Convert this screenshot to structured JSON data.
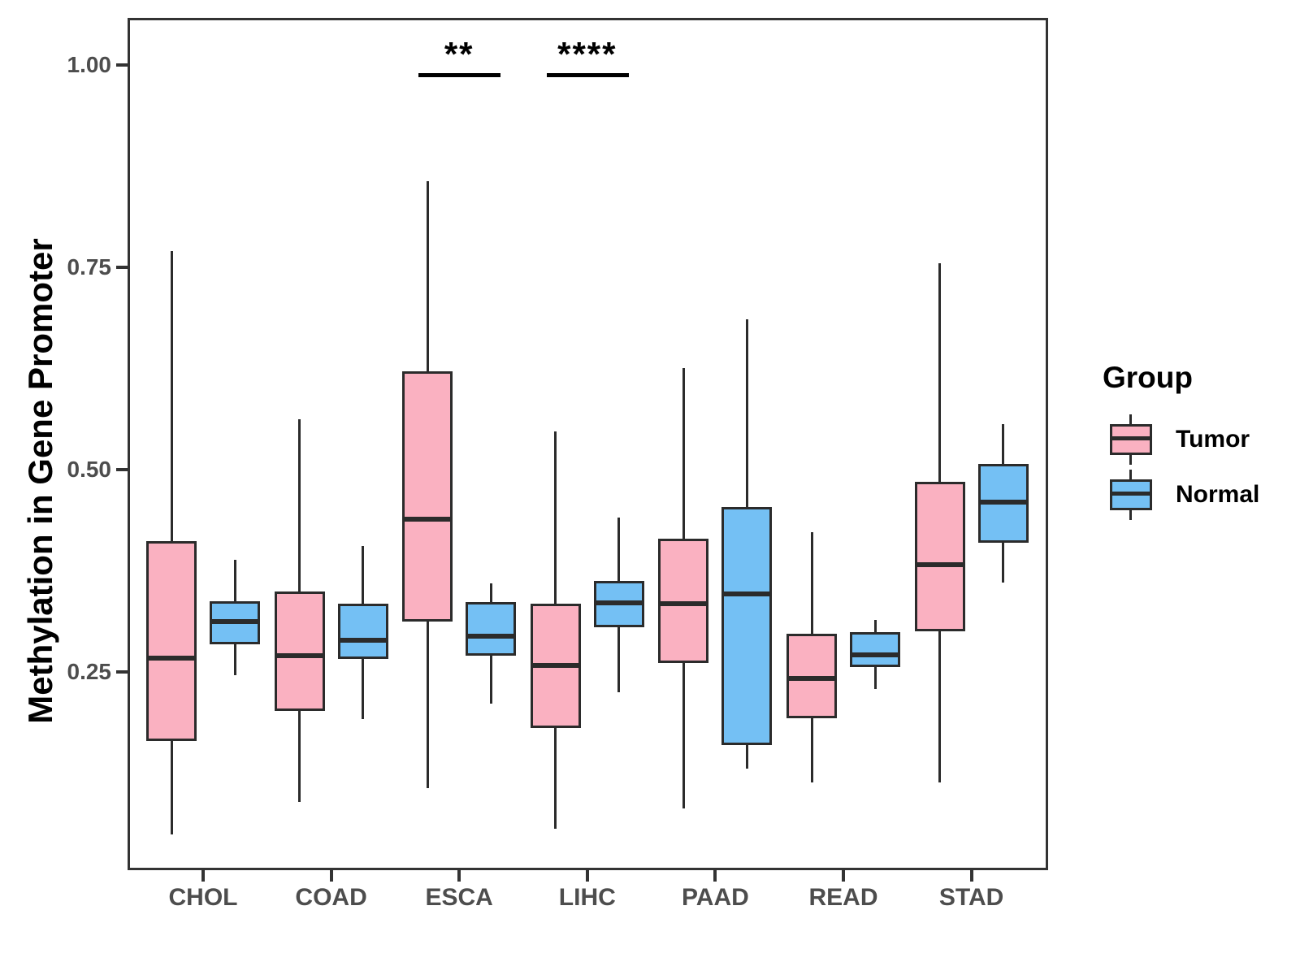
{
  "chart_data": {
    "type": "boxplot",
    "title": "",
    "xlabel": "",
    "ylabel": "Methylation in Gene Promoter",
    "ylim": [
      0,
      1.06
    ],
    "yticks": [
      0.25,
      0.5,
      0.75,
      1.0
    ],
    "ytick_labels": [
      "0.25",
      "0.50",
      "0.75",
      "1.00"
    ],
    "categories": [
      "CHOL",
      "COAD",
      "ESCA",
      "LIHC",
      "PAAD",
      "READ",
      "STAD"
    ],
    "grid": false,
    "legend_position": "right",
    "series": [
      {
        "name": "Tumor",
        "color": "#FAB1C1",
        "boxes": [
          {
            "category": "CHOL",
            "min": 0.05,
            "q1": 0.165,
            "median": 0.268,
            "q3": 0.412,
            "max": 0.77
          },
          {
            "category": "COAD",
            "min": 0.09,
            "q1": 0.202,
            "median": 0.271,
            "q3": 0.35,
            "max": 0.563
          },
          {
            "category": "ESCA",
            "min": 0.107,
            "q1": 0.313,
            "median": 0.439,
            "q3": 0.622,
            "max": 0.857
          },
          {
            "category": "LIHC",
            "min": 0.057,
            "q1": 0.181,
            "median": 0.258,
            "q3": 0.335,
            "max": 0.547
          },
          {
            "category": "PAAD",
            "min": 0.082,
            "q1": 0.261,
            "median": 0.335,
            "q3": 0.415,
            "max": 0.626
          },
          {
            "category": "READ",
            "min": 0.114,
            "q1": 0.193,
            "median": 0.242,
            "q3": 0.298,
            "max": 0.423
          },
          {
            "category": "STAD",
            "min": 0.114,
            "q1": 0.301,
            "median": 0.383,
            "q3": 0.485,
            "max": 0.755
          }
        ]
      },
      {
        "name": "Normal",
        "color": "#74C0F4",
        "boxes": [
          {
            "category": "CHOL",
            "min": 0.246,
            "q1": 0.285,
            "median": 0.313,
            "q3": 0.338,
            "max": 0.389
          },
          {
            "category": "COAD",
            "min": 0.192,
            "q1": 0.266,
            "median": 0.29,
            "q3": 0.335,
            "max": 0.406
          },
          {
            "category": "ESCA",
            "min": 0.211,
            "q1": 0.271,
            "median": 0.295,
            "q3": 0.337,
            "max": 0.36
          },
          {
            "category": "LIHC",
            "min": 0.225,
            "q1": 0.306,
            "median": 0.336,
            "q3": 0.363,
            "max": 0.441
          },
          {
            "category": "PAAD",
            "min": 0.131,
            "q1": 0.16,
            "median": 0.347,
            "q3": 0.454,
            "max": 0.686
          },
          {
            "category": "READ",
            "min": 0.229,
            "q1": 0.256,
            "median": 0.272,
            "q3": 0.3,
            "max": 0.315
          },
          {
            "category": "STAD",
            "min": 0.361,
            "q1": 0.41,
            "median": 0.46,
            "q3": 0.507,
            "max": 0.556
          }
        ]
      }
    ],
    "annotations": [
      {
        "category": "ESCA",
        "label": "**"
      },
      {
        "category": "LIHC",
        "label": "****"
      }
    ],
    "legend": {
      "title": "Group",
      "items": [
        {
          "label": "Tumor",
          "color": "#FAB1C1"
        },
        {
          "label": "Normal",
          "color": "#74C0F4"
        }
      ]
    },
    "colors": {
      "box_border": "#2B2B2B",
      "axis_line": "#333333",
      "axis_text": "#4D4D4D",
      "annotation": "#000000"
    }
  }
}
